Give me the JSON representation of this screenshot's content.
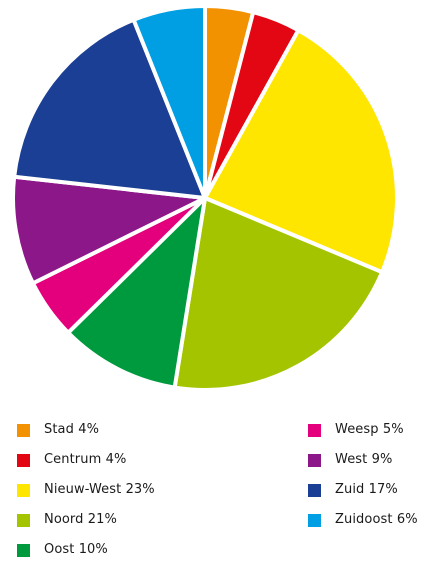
{
  "chart_data": {
    "type": "pie",
    "title": "",
    "slices": [
      {
        "label": "Stad",
        "value": 4,
        "color": "#F39200"
      },
      {
        "label": "Centrum",
        "value": 4,
        "color": "#E30613"
      },
      {
        "label": "Nieuw-West",
        "value": 23,
        "color": "#FFE600"
      },
      {
        "label": "Noord",
        "value": 21,
        "color": "#A5C400"
      },
      {
        "label": "Oost",
        "value": 10,
        "color": "#009A3E"
      },
      {
        "label": "Weesp",
        "value": 5,
        "color": "#E4007C"
      },
      {
        "label": "West",
        "value": 9,
        "color": "#8C1788"
      },
      {
        "label": "Zuid",
        "value": 17,
        "color": "#1B3F94"
      },
      {
        "label": "Zuidoost",
        "value": 6,
        "color": "#009FE3"
      }
    ],
    "legend": {
      "placement": "bottom",
      "columns": [
        [
          "Stad 4%",
          "Centrum 4%",
          "Nieuw-West 23%",
          "Noord 21%",
          "Oost 10%"
        ],
        [
          "Weesp 5%",
          "West 9%",
          "Zuid 17%",
          "Zuidoost 6%"
        ]
      ]
    }
  }
}
